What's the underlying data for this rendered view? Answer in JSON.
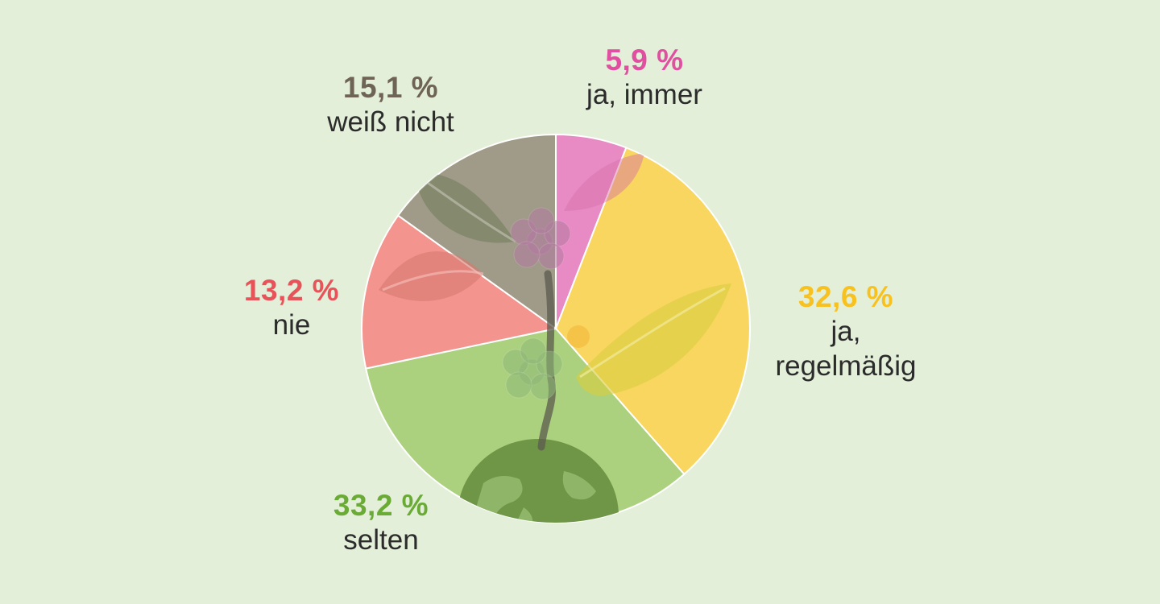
{
  "chart_data": {
    "type": "pie",
    "title": "",
    "slices": [
      {
        "label": "ja, immer",
        "value": 5.9,
        "display": "5,9 %",
        "color": "#e88ac4",
        "label_color": "#e04fa0"
      },
      {
        "label": "ja, regelmäßig",
        "label_lines": [
          "ja,",
          "regelmäßig"
        ],
        "value": 32.6,
        "display": "32,6 %",
        "color": "#f8d660",
        "label_color": "#f7c21f"
      },
      {
        "label": "selten",
        "value": 33.2,
        "display": "33,2 %",
        "color": "#acd17e",
        "label_color": "#6aab35"
      },
      {
        "label": "nie",
        "value": 13.2,
        "display": "13,2 %",
        "color": "#f3948f",
        "label_color": "#e8535a"
      },
      {
        "label": "weiß nicht",
        "value": 15.1,
        "display": "15,1 %",
        "color": "#a09a88",
        "label_color": "#6e6355"
      }
    ],
    "start_angle_deg": 0,
    "direction": "clockwise",
    "legend": "none",
    "illustration": {
      "type": "plant-growing-from-globe",
      "leaf_color": "#7a9a52",
      "globe_color": "#6f9646"
    }
  }
}
